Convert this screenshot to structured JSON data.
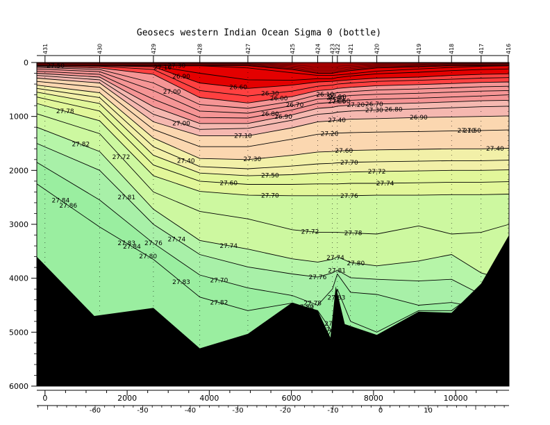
{
  "chart_data": {
    "type": "contour section",
    "title": "Geosecs western Indian Ocean Sigma 0 (bottle)",
    "x_ticks": [
      "0",
      "2000",
      "4000",
      "6000",
      "8000",
      "10000"
    ],
    "x_range": [
      -200,
      11300
    ],
    "y_ticks": [
      "0",
      "1000",
      "2000",
      "3000",
      "4000",
      "5000",
      "6000"
    ],
    "y_range": [
      0,
      6000
    ],
    "lat_ticks": [
      "-60",
      "-50",
      "-40",
      "-30",
      "-20",
      "-10",
      "0",
      "10"
    ],
    "stations": [
      {
        "name": "431",
        "x": 0
      },
      {
        "name": "430",
        "x": 1330
      },
      {
        "name": "429",
        "x": 2640
      },
      {
        "name": "428",
        "x": 3770
      },
      {
        "name": "427",
        "x": 4940
      },
      {
        "name": "425",
        "x": 6020
      },
      {
        "name": "424",
        "x": 6640
      },
      {
        "name": "423",
        "x": 7000
      },
      {
        "name": "422",
        "x": 7120
      },
      {
        "name": "421",
        "x": 7440
      },
      {
        "name": "420",
        "x": 8080
      },
      {
        "name": "419",
        "x": 9100
      },
      {
        "name": "418",
        "x": 9900
      },
      {
        "name": "417",
        "x": 10620
      },
      {
        "name": "416",
        "x": 11280
      }
    ],
    "bathymetry": [
      [
        -200,
        3600
      ],
      [
        1200,
        4700
      ],
      [
        2640,
        4550
      ],
      [
        3770,
        5300
      ],
      [
        4940,
        5030
      ],
      [
        6020,
        4450
      ],
      [
        6640,
        4600
      ],
      [
        6950,
        5100
      ],
      [
        7080,
        4150
      ],
      [
        7300,
        4850
      ],
      [
        8080,
        5050
      ],
      [
        9100,
        4620
      ],
      [
        9900,
        4640
      ],
      [
        10620,
        4100
      ],
      [
        11300,
        3200
      ]
    ],
    "contours": [
      {
        "level": "26.10",
        "depth": [
          60,
          60,
          60,
          60,
          60,
          130,
          200,
          200,
          180,
          150,
          100,
          80,
          60,
          60,
          60
        ]
      },
      {
        "level": "26.40",
        "depth": [
          60,
          60,
          60,
          60,
          100,
          190,
          240,
          240,
          230,
          210,
          160,
          120,
          90,
          70,
          60
        ]
      },
      {
        "level": "26.60",
        "depth": [
          60,
          60,
          60,
          200,
          320,
          330,
          300,
          300,
          280,
          250,
          210,
          180,
          150,
          130,
          120
        ]
      },
      {
        "level": "26.70",
        "depth": [
          60,
          60,
          80,
          380,
          480,
          420,
          360,
          350,
          340,
          320,
          290,
          270,
          240,
          220,
          210
        ]
      },
      {
        "level": "26.80",
        "depth": [
          60,
          70,
          130,
          520,
          620,
          530,
          440,
          420,
          400,
          380,
          350,
          330,
          310,
          290,
          280
        ]
      },
      {
        "level": "26.90",
        "depth": [
          70,
          100,
          220,
          650,
          750,
          630,
          520,
          500,
          480,
          460,
          430,
          410,
          390,
          370,
          360
        ]
      },
      {
        "level": "27.00",
        "depth": [
          90,
          130,
          380,
          780,
          850,
          720,
          600,
          580,
          560,
          540,
          510,
          490,
          470,
          450,
          440
        ]
      },
      {
        "level": "27.10",
        "depth": [
          120,
          170,
          520,
          900,
          940,
          800,
          680,
          660,
          640,
          610,
          590,
          570,
          550,
          530,
          520
        ]
      },
      {
        "level": "27.20",
        "depth": [
          160,
          220,
          680,
          1020,
          1030,
          880,
          760,
          740,
          720,
          700,
          680,
          660,
          640,
          620,
          600
        ]
      },
      {
        "level": "27.30",
        "depth": [
          200,
          270,
          820,
          1130,
          1130,
          970,
          850,
          830,
          810,
          790,
          770,
          750,
          730,
          710,
          700
        ]
      },
      {
        "level": "27.40",
        "depth": [
          240,
          320,
          960,
          1240,
          1220,
          1070,
          960,
          940,
          920,
          900,
          880,
          860,
          840,
          820,
          810
        ]
      },
      {
        "level": "27.50",
        "depth": [
          290,
          380,
          1100,
          1360,
          1360,
          1210,
          1100,
          1080,
          1070,
          1050,
          1040,
          1020,
          1010,
          1000,
          990
        ]
      },
      {
        "level": "27.60",
        "depth": [
          350,
          460,
          1240,
          1560,
          1560,
          1420,
          1330,
          1320,
          1310,
          1300,
          1290,
          1280,
          1270,
          1260,
          1250
        ]
      },
      {
        "level": "27.70",
        "depth": [
          420,
          560,
          1400,
          1780,
          1800,
          1720,
          1660,
          1650,
          1640,
          1630,
          1620,
          1610,
          1600,
          1600,
          1590
        ]
      },
      {
        "level": "27.72",
        "depth": [
          480,
          650,
          1560,
          1930,
          1970,
          1920,
          1880,
          1870,
          1860,
          1850,
          1840,
          1830,
          1820,
          1820,
          1810
        ]
      },
      {
        "level": "27.74",
        "depth": [
          550,
          760,
          1720,
          2050,
          2100,
          2080,
          2050,
          2040,
          2040,
          2030,
          2020,
          2010,
          2000,
          2000,
          1990
        ]
      },
      {
        "level": "27.76",
        "depth": [
          640,
          900,
          1900,
          2200,
          2260,
          2260,
          2250,
          2250,
          2250,
          2240,
          2240,
          2230,
          2220,
          2220,
          2210
        ]
      },
      {
        "level": "27.78",
        "depth": [
          760,
          1080,
          2100,
          2390,
          2460,
          2470,
          2470,
          2470,
          2470,
          2470,
          2460,
          2460,
          2450,
          2450,
          2440
        ]
      },
      {
        "level": "27.80",
        "depth": [
          950,
          1320,
          2400,
          2760,
          2900,
          3100,
          3150,
          3150,
          3150,
          3160,
          3180,
          3030,
          3180,
          3150,
          3000
        ]
      },
      {
        "level": "27.81",
        "depth": [
          1200,
          1650,
          2720,
          3300,
          3460,
          3640,
          3700,
          3650,
          3600,
          3710,
          3770,
          3680,
          3560,
          3900,
          4050
        ]
      },
      {
        "level": "27.82",
        "depth": [
          1500,
          2000,
          3000,
          3560,
          3790,
          3920,
          3980,
          3900,
          3850,
          3990,
          4020,
          4050,
          4020,
          4300,
          4150
        ]
      },
      {
        "level": "27.83",
        "depth": [
          1850,
          2550,
          3350,
          3940,
          4180,
          4320,
          4500,
          4200,
          3920,
          4260,
          4300,
          4500,
          4450,
          4550,
          4150
        ]
      },
      {
        "level": "27.84",
        "depth": [
          2250,
          3050,
          3650,
          4350,
          4600,
          4460,
          4600,
          5000,
          4200,
          4800,
          5000,
          4600,
          4600,
          4200,
          3800
        ]
      }
    ],
    "band_colors": [
      "#c80000",
      "#e40000",
      "#ff4040",
      "#f59595",
      "#f5b8b0",
      "#fbd7b0",
      "#f2f0a8",
      "#e2f79a",
      "#cdf8a0",
      "#b6f5a8",
      "#a8f0a8",
      "#9aeea0"
    ],
    "label_text": [
      "27.50",
      "27.30",
      "27.10",
      "26.90",
      "26.60",
      "26.30",
      "26.00",
      "26.10",
      "26.40",
      "26.60",
      "26.70",
      "26.80",
      "26.90",
      "27.10",
      "27.40",
      "27.00",
      "26.70",
      "26.80",
      "26.90",
      "27.00",
      "27.10",
      "27.20",
      "27.30",
      "27.40",
      "27.50",
      "27.60",
      "27.78",
      "27.72",
      "27.82",
      "27.74",
      "27.76",
      "27.84",
      "27.81",
      "27.70",
      "27.74",
      "27.70",
      "27.72",
      "27.74",
      "27.76",
      "27.78",
      "27.83",
      "27.80",
      "27.84",
      "27.83",
      "27.82",
      "27.80",
      "27.81",
      "27.82",
      "27.86",
      "27.83",
      "27.83",
      "27.83",
      "27.10",
      "27.00",
      "27.20",
      "27.30",
      "27.40",
      "27.50",
      "27.60",
      "27.70",
      "27.72",
      "27.74",
      "27.76",
      "27.78",
      "27.80",
      "27.81"
    ]
  }
}
